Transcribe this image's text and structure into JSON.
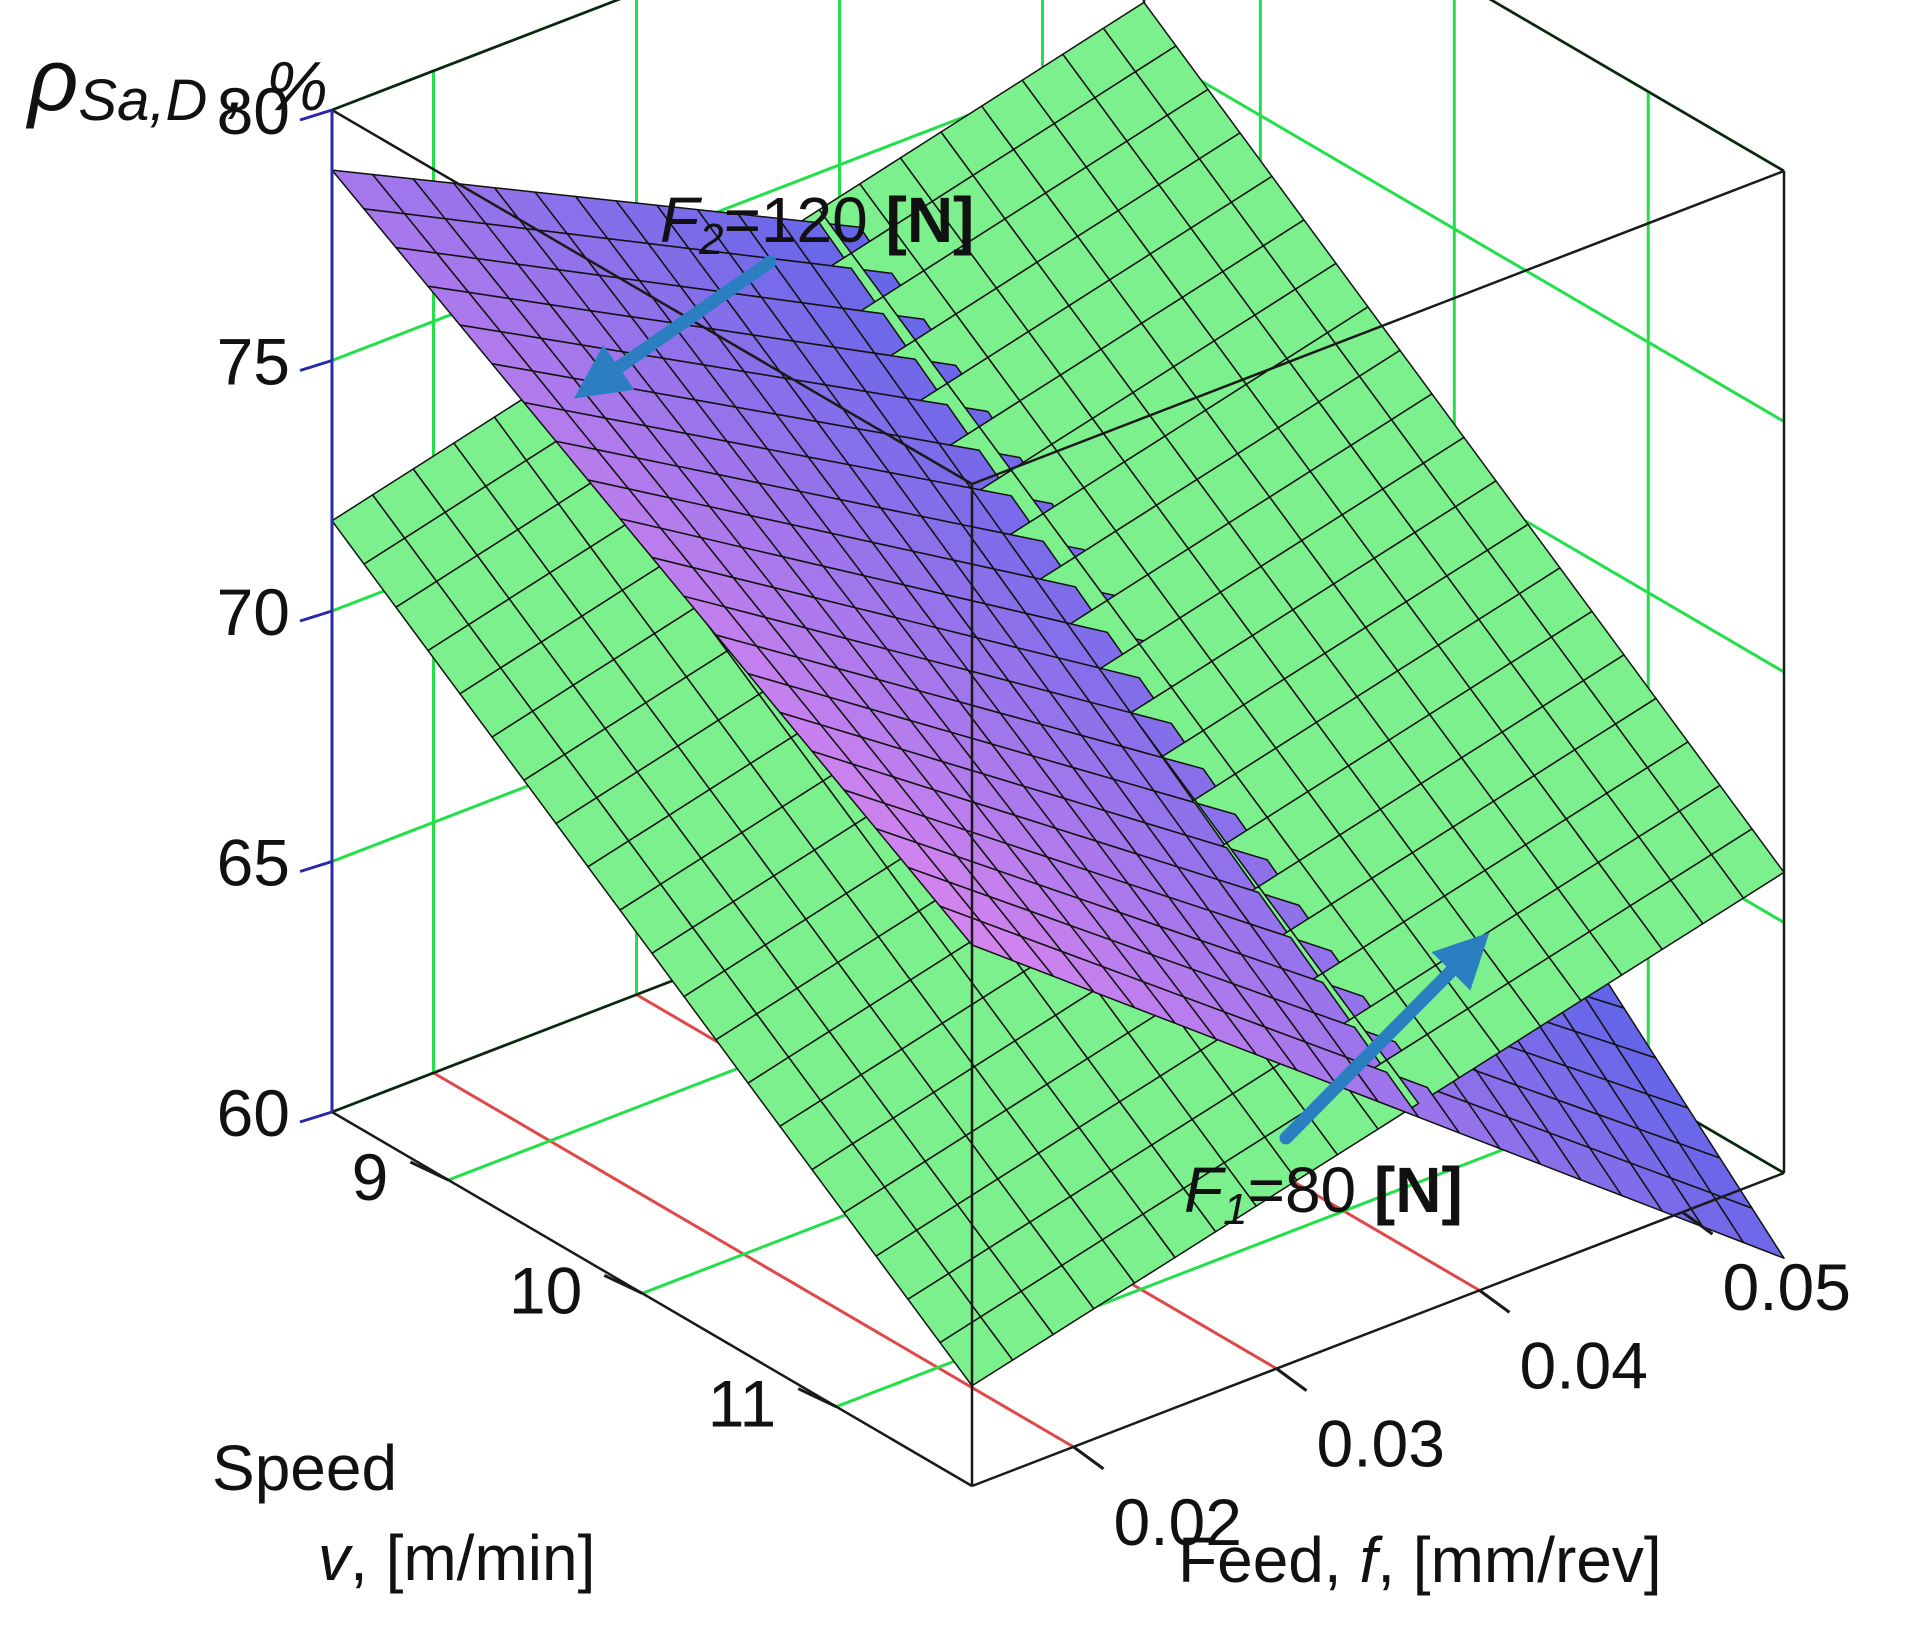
{
  "chart_data": {
    "type": "surface3d",
    "title": "",
    "zlabel": {
      "symbol": "ρ",
      "subscript": "Sa,D",
      "suffix": " , %"
    },
    "xlabel": {
      "prefix": "Feed, ",
      "var": "f",
      "suffix": ", [mm/rev]"
    },
    "ylabel": {
      "line1": "Speed",
      "var": "v",
      "suffix": ", [m/min]"
    },
    "xlim": [
      0.015,
      0.055
    ],
    "ylim": [
      8.4,
      11.7
    ],
    "zlim": [
      60,
      80
    ],
    "x_ticks": [
      "0.02",
      "0.03",
      "0.04",
      "0.05"
    ],
    "x_tick_values": [
      0.02,
      0.03,
      0.04,
      0.05
    ],
    "y_ticks": [
      "9",
      "10",
      "11"
    ],
    "y_tick_values": [
      9,
      10,
      11
    ],
    "z_ticks": [
      "60",
      "65",
      "70",
      "75",
      "80"
    ],
    "z_tick_values": [
      60,
      65,
      70,
      75,
      80
    ],
    "grid": true,
    "series": [
      {
        "name": "F1=80 [N]",
        "shape": "plane",
        "color": "#7cf08c",
        "corner_z": {
          "v_min_f_min": 71.8,
          "v_min_f_max": 75.9,
          "v_max_f_min": 62.0,
          "v_max_f_max": 66.0
        }
      },
      {
        "name": "F2=120 [N]",
        "shape": "saddle",
        "color_high": "#f08cf0",
        "color_low": "#4a5ee6",
        "corner_z": {
          "v_min_f_min": 78.8,
          "v_min_f_max": 70.8,
          "v_max_f_min": 70.8,
          "v_max_f_max": 58.3
        }
      }
    ],
    "annotations": [
      {
        "var": "F",
        "sub": "2",
        "text": "=120 ",
        "unit": "[N]",
        "target": "F2 surface"
      },
      {
        "var": "F",
        "sub": "1",
        "text": "=80 ",
        "unit": "[N]",
        "target": "F1 surface"
      }
    ],
    "colors": {
      "box_edge": "#1a1a1a",
      "grid_wall": "#22e04a",
      "grid_floor": "#e04848",
      "z_axis": "#2a2aa8",
      "arrow": "#2b7fc0"
    }
  }
}
